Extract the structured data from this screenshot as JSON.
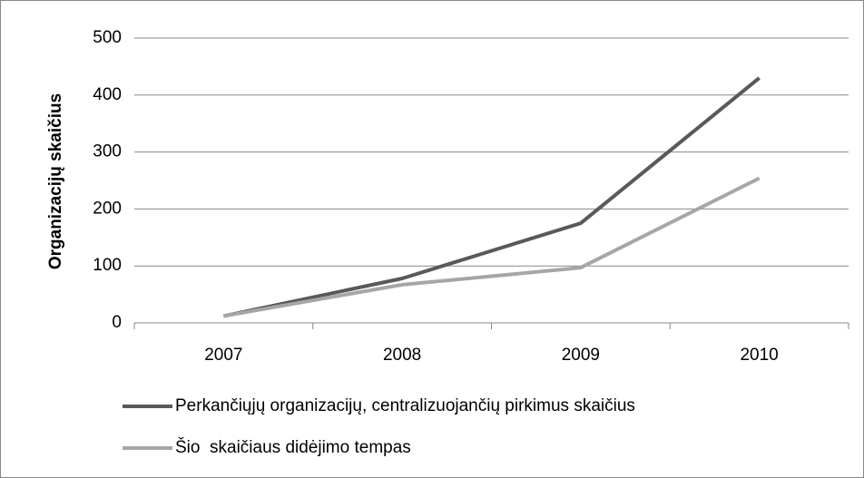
{
  "chart_data": {
    "type": "line",
    "y_label": "Organizacijų skaičius",
    "categories": [
      "2007",
      "2008",
      "2009",
      "2010"
    ],
    "series": [
      {
        "name": "Perkančiųjų organizacijų, centralizuojančių pirkimus skaičius",
        "color": "#595959",
        "values": [
          12,
          78,
          175,
          430
        ]
      },
      {
        "name": "Šio  skaičiaus didėjimo tempas",
        "color": "#a6a6a6",
        "values": [
          12,
          67,
          97,
          254
        ]
      }
    ],
    "ylim": [
      0,
      500
    ],
    "yticks": [
      0,
      100,
      200,
      300,
      400,
      500
    ],
    "grid": true,
    "legend": "bottom"
  }
}
